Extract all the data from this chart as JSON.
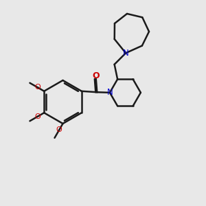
{
  "background_color": "#e8e8e8",
  "line_color": "#1a1a1a",
  "N_color": "#0000cc",
  "O_color": "#cc0000",
  "linewidth": 1.8,
  "figsize": [
    3.0,
    3.0
  ],
  "dpi": 100,
  "xlim": [
    0,
    10
  ],
  "ylim": [
    0,
    10
  ]
}
